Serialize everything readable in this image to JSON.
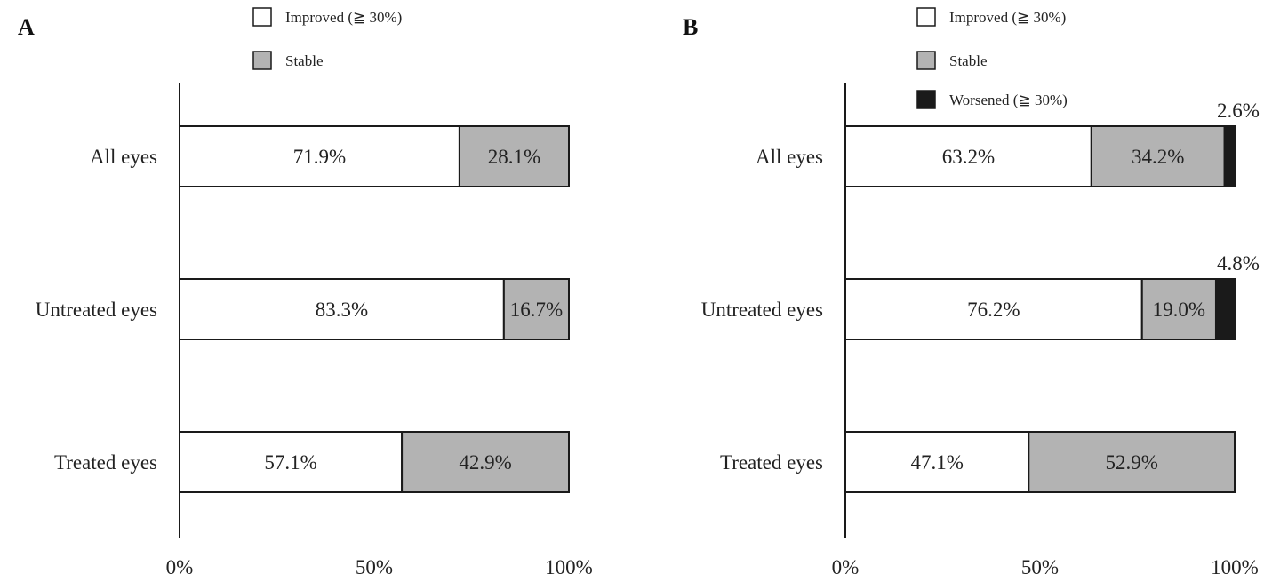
{
  "colors": {
    "improved": "#ffffff",
    "stable": "#b3b3b3",
    "worsened": "#1a1a1a",
    "outline": "#1a1a1a",
    "text": "#222222"
  },
  "chart_data": [
    {
      "type": "bar",
      "orientation": "horizontal",
      "stacked": true,
      "panel_label": "A",
      "categories": [
        "All eyes",
        "Untreated eyes",
        "Treated eyes"
      ],
      "series": [
        {
          "name": "Improved (≧ 30%)",
          "values": [
            71.9,
            83.3,
            57.1
          ],
          "labels": [
            "71.9%",
            "83.3%",
            "57.1%"
          ]
        },
        {
          "name": "Stable",
          "values": [
            28.1,
            16.7,
            42.9
          ],
          "labels": [
            "28.1%",
            "16.7%",
            "42.9%"
          ]
        }
      ],
      "xlim": [
        0,
        100
      ],
      "x_ticks": [
        "0%",
        "50%",
        "100%"
      ],
      "legend_position": "top",
      "grid": false
    },
    {
      "type": "bar",
      "orientation": "horizontal",
      "stacked": true,
      "panel_label": "B",
      "categories": [
        "All eyes",
        "Untreated eyes",
        "Treated eyes"
      ],
      "series": [
        {
          "name": "Improved (≧ 30%)",
          "values": [
            63.2,
            76.2,
            47.1
          ],
          "labels": [
            "63.2%",
            "76.2%",
            "47.1%"
          ]
        },
        {
          "name": "Stable",
          "values": [
            34.2,
            19.0,
            52.9
          ],
          "labels": [
            "34.2%",
            "19.0%",
            "52.9%"
          ]
        },
        {
          "name": "Worsened (≧ 30%)",
          "values": [
            2.6,
            4.8,
            0
          ],
          "labels": [
            "2.6%",
            "4.8%",
            ""
          ]
        }
      ],
      "xlim": [
        0,
        100
      ],
      "x_ticks": [
        "0%",
        "50%",
        "100%"
      ],
      "legend_position": "top",
      "grid": false
    }
  ]
}
